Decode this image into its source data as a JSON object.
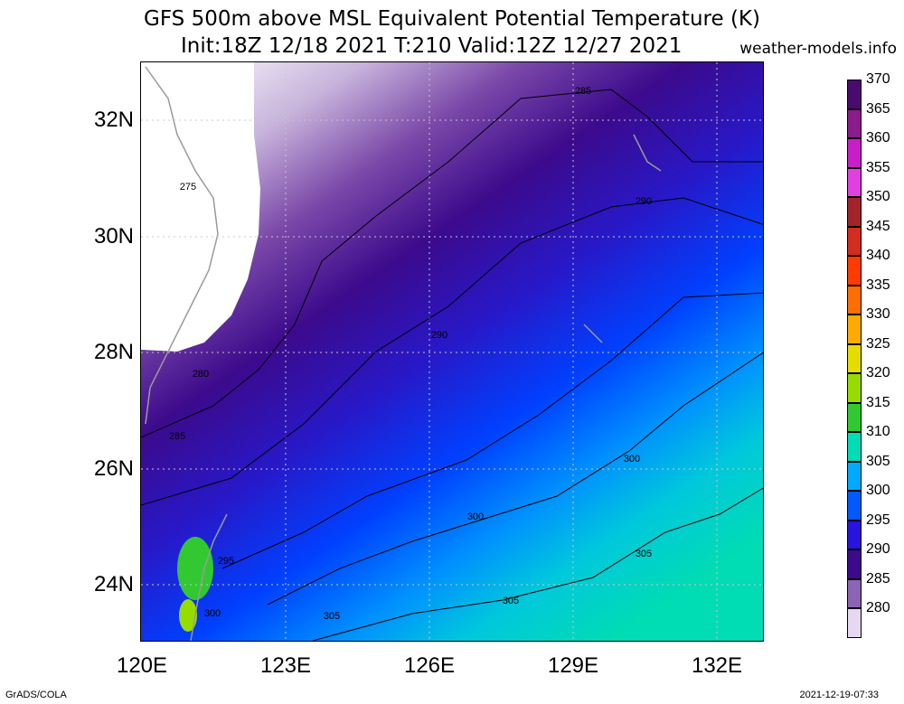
{
  "header": {
    "title_line1": "GFS 500m above MSL Equivalent Potential Temperature (K)",
    "title_line2": "Init:18Z 12/18 2021 T:210 Valid:12Z 12/27 2021",
    "source": "weather-models.info"
  },
  "axes": {
    "lat_labels": [
      "32N",
      "30N",
      "28N",
      "26N",
      "24N"
    ],
    "lon_labels": [
      "120E",
      "123E",
      "126E",
      "129E",
      "132E"
    ]
  },
  "contour_labels": [
    "275",
    "280",
    "285",
    "285",
    "290",
    "290",
    "295",
    "300",
    "300",
    "300",
    "305",
    "305",
    "305"
  ],
  "colorbar": {
    "labels": [
      "370",
      "365",
      "360",
      "355",
      "350",
      "345",
      "340",
      "335",
      "330",
      "325",
      "320",
      "315",
      "310",
      "305",
      "300",
      "295",
      "290",
      "285",
      "280"
    ],
    "colors": [
      "#4b0a6e",
      "#8a1c8c",
      "#c81ec8",
      "#e040e0",
      "#a0242a",
      "#d22d1e",
      "#ff3c00",
      "#ff6e00",
      "#ffaa00",
      "#e6dc00",
      "#96dc00",
      "#32c832",
      "#00dcb4",
      "#00aaff",
      "#005aff",
      "#2814dc",
      "#3c0a8c",
      "#8c64b4",
      "#e6d8f0"
    ]
  },
  "footer": {
    "left": "GrADS/COLA",
    "right": "2021-12-19-07:33"
  }
}
